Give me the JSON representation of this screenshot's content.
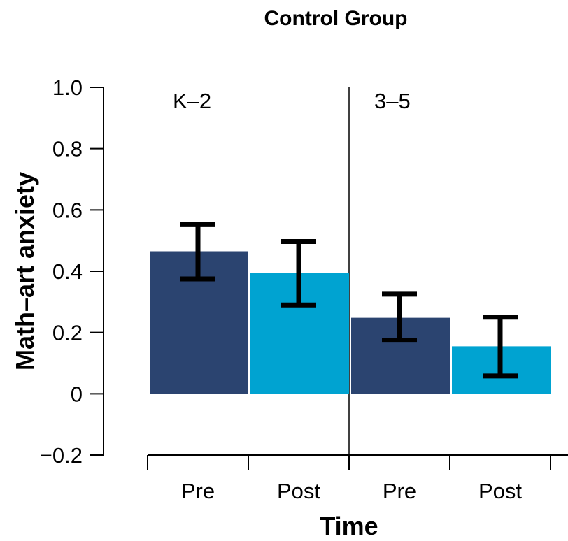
{
  "chart_data": {
    "type": "bar",
    "title": "Control Group",
    "xlabel": "Time",
    "ylabel": "Math–art anxiety",
    "ylim": [
      -0.2,
      1.0
    ],
    "yticks": [
      -0.2,
      0,
      0.2,
      0.4,
      0.6,
      0.8,
      1.0
    ],
    "ytick_labels": [
      "−0.2",
      "0",
      "0.2",
      "0.4",
      "0.6",
      "0.8",
      "1.0"
    ],
    "panels": [
      {
        "label": "K–2",
        "categories": [
          "Pre",
          "Post"
        ],
        "values": [
          0.465,
          0.395
        ],
        "errors_low": [
          0.375,
          0.29
        ],
        "errors_high": [
          0.552,
          0.497
        ]
      },
      {
        "label": "3–5",
        "categories": [
          "Pre",
          "Post"
        ],
        "values": [
          0.248,
          0.155
        ],
        "errors_low": [
          0.175,
          0.058
        ],
        "errors_high": [
          0.325,
          0.25
        ]
      }
    ],
    "bar_colors": [
      "#2b4470",
      "#00a3d1"
    ],
    "grid": false,
    "legend": "none"
  }
}
